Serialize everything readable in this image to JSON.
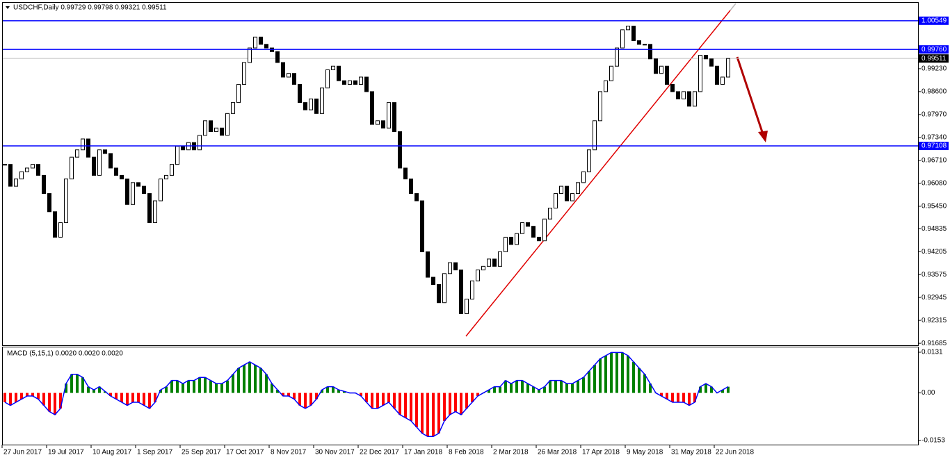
{
  "chart_data": {
    "type": "candlestick",
    "title": "USDCHF,Daily 0.99729 0.99798 0.99321 0.99511",
    "categories": [
      "27 Jun 2017",
      null,
      null,
      null,
      null,
      null,
      null,
      null,
      "19 Jul 2017",
      null,
      null,
      null,
      null,
      null,
      null,
      null,
      "10 Aug 2017",
      null,
      null,
      null,
      null,
      null,
      null,
      null,
      "1 Sep 2017",
      null,
      null,
      null,
      null,
      null,
      null,
      null,
      "25 Sep 2017",
      null,
      null,
      null,
      null,
      null,
      null,
      null,
      "17 Oct 2017",
      null,
      null,
      null,
      null,
      null,
      null,
      null,
      "8 Nov 2017",
      null,
      null,
      null,
      null,
      null,
      null,
      null,
      "30 Nov 2017",
      null,
      null,
      null,
      null,
      null,
      null,
      null,
      "22 Dec 2017",
      null,
      null,
      null,
      null,
      null,
      null,
      null,
      "17 Jan 2018",
      null,
      null,
      null,
      null,
      null,
      null,
      null,
      "8 Feb 2018",
      null,
      null,
      null,
      null,
      null,
      null,
      null,
      "2 Mar 2018",
      null,
      null,
      null,
      null,
      null,
      null,
      null,
      "26 Mar 2018",
      null,
      null,
      null,
      null,
      null,
      null,
      null,
      "17 Apr 2018",
      null,
      null,
      null,
      null,
      null,
      null,
      null,
      "9 May 2018",
      null,
      null,
      null,
      null,
      null,
      null,
      null,
      "31 May 2018",
      null,
      null,
      null,
      null,
      null,
      null,
      null,
      "22 Jun 2018",
      null,
      null
    ],
    "close": [
      0.966,
      0.96,
      0.962,
      0.964,
      0.965,
      0.966,
      0.963,
      0.958,
      0.953,
      0.946,
      0.95,
      0.962,
      0.968,
      0.97,
      0.973,
      0.968,
      0.963,
      0.97,
      0.969,
      0.965,
      0.963,
      0.962,
      0.955,
      0.961,
      0.96,
      0.958,
      0.95,
      0.956,
      0.962,
      0.963,
      0.966,
      0.971,
      0.97,
      0.972,
      0.97,
      0.974,
      0.978,
      0.975,
      0.976,
      0.974,
      0.98,
      0.983,
      0.988,
      0.994,
      0.998,
      1.001,
      0.999,
      0.998,
      0.997,
      0.994,
      0.99,
      0.991,
      0.988,
      0.983,
      0.981,
      0.984,
      0.98,
      0.987,
      0.992,
      0.993,
      0.989,
      0.988,
      0.989,
      0.988,
      0.99,
      0.986,
      0.977,
      0.978,
      0.976,
      0.983,
      0.975,
      0.965,
      0.962,
      0.958,
      0.956,
      0.942,
      0.935,
      0.933,
      0.928,
      0.936,
      0.939,
      0.937,
      0.925,
      0.929,
      0.934,
      0.937,
      0.938,
      0.94,
      0.938,
      0.942,
      0.946,
      0.944,
      0.947,
      0.95,
      0.949,
      0.946,
      0.945,
      0.951,
      0.954,
      0.958,
      0.96,
      0.956,
      0.958,
      0.961,
      0.964,
      0.97,
      0.978,
      0.986,
      0.989,
      0.993,
      0.998,
      1.003,
      1.004,
      1.0,
      0.999,
      0.999,
      0.995,
      0.991,
      0.993,
      0.988,
      0.986,
      0.984,
      0.986,
      0.982,
      0.986,
      0.996,
      0.995,
      0.993,
      0.988,
      0.99,
      0.9951
    ],
    "ylim": [
      0.9163,
      1.0108
    ],
    "yticks": [
      {
        "value": 0.9923,
        "label": "0.99230"
      },
      {
        "value": 0.986,
        "label": "0.98600"
      },
      {
        "value": 0.9797,
        "label": "0.97970"
      },
      {
        "value": 0.9734,
        "label": "0.97340"
      },
      {
        "value": 0.9671,
        "label": "0.96710"
      },
      {
        "value": 0.9608,
        "label": "0.96080"
      },
      {
        "value": 0.9545,
        "label": "0.95450"
      },
      0.94835,
      0.94205,
      0.93575,
      0.92945,
      0.92315,
      0.91685
    ],
    "levels": [
      1.00549,
      {
        "value": 0.9976,
        "label": "0.99760"
      },
      0.97108
    ],
    "level_color": "#0000ff",
    "current_price": 0.99511,
    "macd": {
      "title": "MACD (5,15,1) 0.0020 0.0020 0.0020",
      "values": [
        -0.003,
        -0.004,
        -0.003,
        -0.002,
        -0.001,
        -0.001,
        -0.002,
        -0.004,
        -0.006,
        -0.007,
        -0.005,
        0.003,
        0.006,
        0.006,
        0.005,
        0.002,
        0.001,
        0.002,
        0.0005,
        -0.001,
        -0.002,
        -0.003,
        -0.004,
        -0.003,
        -0.003,
        -0.004,
        -0.005,
        -0.003,
        0.001,
        0.002,
        0.004,
        0.004,
        0.003,
        0.004,
        0.004,
        0.005,
        0.005,
        0.004,
        0.003,
        0.003,
        0.004,
        0.006,
        0.008,
        0.009,
        0.01,
        0.009,
        0.008,
        0.006,
        0.003,
        0.001,
        -0.001,
        -0.001,
        -0.002,
        -0.004,
        -0.005,
        -0.004,
        -0.002,
        0.001,
        0.002,
        0.002,
        0.001,
        0.0005,
        0,
        0,
        -0.001,
        -0.003,
        -0.005,
        -0.005,
        -0.004,
        -0.003,
        -0.005,
        -0.007,
        -0.008,
        -0.009,
        -0.011,
        -0.013,
        -0.014,
        -0.014,
        -0.013,
        -0.009,
        -0.007,
        -0.006,
        -0.007,
        -0.005,
        -0.003,
        -0.001,
        0,
        0.001,
        0.002,
        0.002,
        0.004,
        0.003,
        0.004,
        0.004,
        0.003,
        0.002,
        0.001,
        0.002,
        0.004,
        0.004,
        0.004,
        0.003,
        0.003,
        0.004,
        0.005,
        0.007,
        0.009,
        0.011,
        0.012,
        0.013,
        0.013,
        0.013,
        0.012,
        0.01,
        0.008,
        0.006,
        0.003,
        0,
        -0.001,
        -0.002,
        -0.003,
        -0.003,
        -0.003,
        -0.004,
        -0.003,
        0.002,
        0.003,
        0.002,
        0,
        0.001,
        0.002
      ],
      "ylim": [
        -0.01664,
        0.01466
      ],
      "yticks": [
        0.0131,
        {
          "value": 0,
          "label": "0.00"
        },
        -0.0153
      ],
      "positive_color": "#008000",
      "negative_color": "#ff0000",
      "line_color": "#0000ff"
    }
  }
}
